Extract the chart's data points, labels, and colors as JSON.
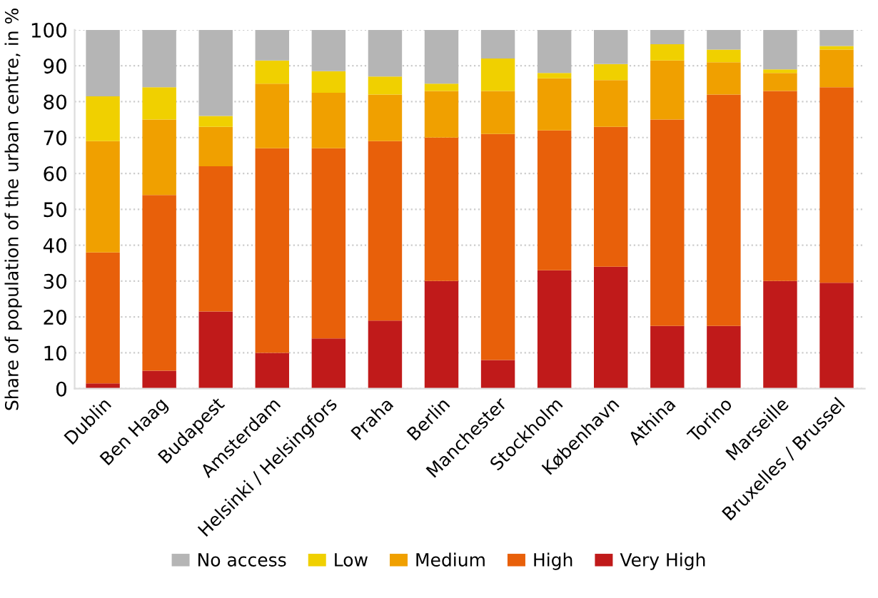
{
  "chart_data": {
    "type": "bar",
    "stacked": true,
    "ylabel": "Share of population of the urban centre, in %",
    "categories": [
      "Dublin",
      "Ben Haag",
      "Budapest",
      "Amsterdam",
      "Helsinki / Helsingfors",
      "Praha",
      "Berlin",
      "Manchester",
      "Stockholm",
      "København",
      "Athina",
      "Torino",
      "Marseille",
      "Bruxelles / Brussel"
    ],
    "series": [
      {
        "name": "Very High",
        "color": "#c01a1a",
        "values": [
          1.5,
          5,
          21.5,
          10,
          14,
          19,
          30,
          8,
          33,
          34,
          17.5,
          17.5,
          30,
          29.5
        ]
      },
      {
        "name": "High",
        "color": "#e8600a",
        "values": [
          36.5,
          49,
          40.5,
          57,
          53,
          50,
          40,
          63,
          39,
          39,
          57.5,
          64.5,
          53,
          54.5
        ]
      },
      {
        "name": "Medium",
        "color": "#f0a000",
        "values": [
          31,
          21,
          11,
          18,
          15.5,
          13,
          13,
          12,
          14.5,
          13,
          16.5,
          9,
          5,
          10.5
        ]
      },
      {
        "name": "Low",
        "color": "#f0d000",
        "values": [
          12.5,
          9,
          3,
          6.5,
          6,
          5,
          2,
          9,
          1.5,
          4.5,
          4.5,
          3.5,
          1,
          1
        ]
      },
      {
        "name": "No access",
        "color": "#b5b5b5",
        "values": [
          18.5,
          16,
          24,
          8.5,
          11.5,
          13,
          15,
          8,
          12,
          9.5,
          4,
          5.5,
          11,
          4.5
        ]
      }
    ],
    "ylim": [
      0,
      100
    ],
    "yticks": [
      0,
      10,
      20,
      30,
      40,
      50,
      60,
      70,
      80,
      90,
      100
    ],
    "grid": "y",
    "legend": "bottom"
  }
}
